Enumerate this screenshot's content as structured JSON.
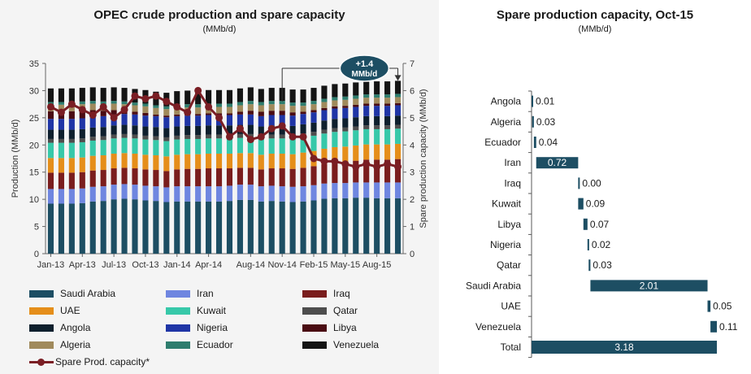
{
  "left": {
    "title": "OPEC crude production and spare capacity",
    "subtitle": "(MMb/d)"
  },
  "right": {
    "title": "Spare production capacity, Oct-15",
    "subtitle": "(MMb/d)"
  },
  "chart_data": [
    {
      "type": "bar",
      "stacked": true,
      "ylabel": "Production (MMb/d)",
      "y2label": "Spare production capacity (MMb/d)",
      "ylim": [
        0,
        35
      ],
      "yticks": [
        0,
        5,
        10,
        15,
        20,
        25,
        30,
        35
      ],
      "y2lim": [
        0,
        7
      ],
      "y2ticks": [
        0,
        1,
        2,
        3,
        4,
        5,
        6,
        7
      ],
      "grid": false,
      "legend_position": "bottom",
      "categories": [
        "Jan-13",
        "Feb-13",
        "Mar-13",
        "Apr-13",
        "May-13",
        "Jun-13",
        "Jul-13",
        "Aug-13",
        "Sep-13",
        "Oct-13",
        "Nov-13",
        "Dec-13",
        "Jan-14",
        "Feb-14",
        "Mar-14",
        "Apr-14",
        "May-14",
        "Jun-14",
        "Jul-14",
        "Aug-14",
        "Sep-14",
        "Oct-14",
        "Nov-14",
        "Dec-14",
        "Jan-15",
        "Feb-15",
        "Mar-15",
        "Apr-15",
        "May-15",
        "Jun-15",
        "Jul-15",
        "Aug-15",
        "Sep-15",
        "Oct-15"
      ],
      "xtick_labels": [
        "Jan-13",
        "Apr-13",
        "Jul-13",
        "Oct-13",
        "Jan-14",
        "Apr-14",
        "Aug-14",
        "Nov-14",
        "Feb-15",
        "May-15",
        "Aug-15"
      ],
      "xtick_indices": [
        0,
        3,
        6,
        9,
        12,
        15,
        19,
        22,
        25,
        28,
        31
      ],
      "series": [
        {
          "name": "Saudi Arabia",
          "color": "#1d4e63",
          "values": [
            9.2,
            9.2,
            9.2,
            9.3,
            9.6,
            9.7,
            10.0,
            10.1,
            10.0,
            9.8,
            9.7,
            9.5,
            9.6,
            9.6,
            9.6,
            9.6,
            9.6,
            9.7,
            9.9,
            9.9,
            9.6,
            9.7,
            9.6,
            9.5,
            9.6,
            9.8,
            10.1,
            10.2,
            10.2,
            10.3,
            10.3,
            10.2,
            10.2,
            10.2
          ]
        },
        {
          "name": "Iran",
          "color": "#6f86e0",
          "values": [
            2.7,
            2.7,
            2.7,
            2.7,
            2.7,
            2.7,
            2.7,
            2.7,
            2.7,
            2.7,
            2.7,
            2.7,
            2.8,
            2.8,
            2.8,
            2.8,
            2.8,
            2.8,
            2.8,
            2.8,
            2.8,
            2.8,
            2.8,
            2.8,
            2.8,
            2.8,
            2.8,
            2.8,
            2.8,
            2.8,
            2.8,
            2.9,
            2.9,
            2.9
          ]
        },
        {
          "name": "Iraq",
          "color": "#7a1d1d",
          "values": [
            3.0,
            3.0,
            3.0,
            3.0,
            3.0,
            3.0,
            3.0,
            3.0,
            3.0,
            3.0,
            3.0,
            3.0,
            3.1,
            3.2,
            3.2,
            3.3,
            3.3,
            3.2,
            3.1,
            3.1,
            3.1,
            3.2,
            3.3,
            3.3,
            3.4,
            3.5,
            3.6,
            3.8,
            3.9,
            4.0,
            4.2,
            4.2,
            4.2,
            4.3
          ]
        },
        {
          "name": "UAE",
          "color": "#e58e1a",
          "values": [
            2.7,
            2.7,
            2.7,
            2.7,
            2.7,
            2.7,
            2.7,
            2.7,
            2.7,
            2.7,
            2.7,
            2.7,
            2.7,
            2.7,
            2.7,
            2.7,
            2.7,
            2.7,
            2.7,
            2.7,
            2.7,
            2.7,
            2.7,
            2.7,
            2.8,
            2.8,
            2.8,
            2.8,
            2.8,
            2.8,
            2.8,
            2.8,
            2.8,
            2.8
          ]
        },
        {
          "name": "Kuwait",
          "color": "#37c8a9",
          "values": [
            2.8,
            2.8,
            2.8,
            2.8,
            2.8,
            2.8,
            2.8,
            2.8,
            2.8,
            2.8,
            2.8,
            2.8,
            2.8,
            2.8,
            2.8,
            2.8,
            2.8,
            2.8,
            2.8,
            2.8,
            2.8,
            2.8,
            2.8,
            2.8,
            2.8,
            2.8,
            2.8,
            2.8,
            2.8,
            2.8,
            2.8,
            2.8,
            2.8,
            2.8
          ]
        },
        {
          "name": "Qatar",
          "color": "#4d4d4d",
          "values": [
            0.7,
            0.7,
            0.7,
            0.7,
            0.7,
            0.7,
            0.7,
            0.7,
            0.7,
            0.7,
            0.7,
            0.7,
            0.7,
            0.7,
            0.7,
            0.7,
            0.7,
            0.7,
            0.7,
            0.7,
            0.7,
            0.7,
            0.7,
            0.7,
            0.7,
            0.7,
            0.7,
            0.7,
            0.7,
            0.7,
            0.7,
            0.7,
            0.7,
            0.7
          ]
        },
        {
          "name": "Angola",
          "color": "#0e1f2d",
          "values": [
            1.7,
            1.7,
            1.7,
            1.7,
            1.7,
            1.7,
            1.7,
            1.7,
            1.7,
            1.7,
            1.7,
            1.7,
            1.7,
            1.7,
            1.7,
            1.7,
            1.7,
            1.7,
            1.7,
            1.7,
            1.7,
            1.7,
            1.7,
            1.7,
            1.7,
            1.7,
            1.7,
            1.7,
            1.7,
            1.7,
            1.7,
            1.7,
            1.7,
            1.7
          ]
        },
        {
          "name": "Nigeria",
          "color": "#1f35a6",
          "values": [
            2.0,
            2.0,
            2.0,
            2.0,
            2.0,
            2.0,
            2.0,
            2.0,
            2.0,
            2.0,
            2.0,
            2.0,
            1.9,
            1.9,
            1.9,
            1.9,
            1.9,
            1.9,
            1.9,
            1.9,
            1.9,
            1.9,
            1.9,
            1.9,
            1.9,
            1.9,
            1.9,
            1.9,
            1.9,
            1.9,
            1.9,
            1.9,
            1.9,
            1.9
          ]
        },
        {
          "name": "Libya",
          "color": "#4a0b12",
          "values": [
            1.4,
            1.4,
            1.4,
            1.4,
            1.2,
            1.0,
            0.8,
            0.6,
            0.5,
            0.5,
            0.3,
            0.3,
            0.3,
            0.3,
            0.3,
            0.3,
            0.3,
            0.3,
            0.5,
            0.7,
            0.8,
            0.8,
            0.8,
            0.6,
            0.4,
            0.4,
            0.4,
            0.4,
            0.4,
            0.4,
            0.4,
            0.4,
            0.4,
            0.4
          ]
        },
        {
          "name": "Algeria",
          "color": "#a08a5c",
          "values": [
            1.2,
            1.2,
            1.2,
            1.2,
            1.2,
            1.2,
            1.2,
            1.2,
            1.2,
            1.2,
            1.2,
            1.2,
            1.2,
            1.2,
            1.2,
            1.2,
            1.2,
            1.2,
            1.2,
            1.2,
            1.2,
            1.2,
            1.2,
            1.2,
            1.1,
            1.1,
            1.1,
            1.1,
            1.1,
            1.1,
            1.1,
            1.1,
            1.1,
            1.1
          ]
        },
        {
          "name": "Ecuador",
          "color": "#2e7d6e",
          "values": [
            0.5,
            0.5,
            0.5,
            0.5,
            0.5,
            0.5,
            0.5,
            0.5,
            0.5,
            0.5,
            0.5,
            0.5,
            0.6,
            0.6,
            0.6,
            0.6,
            0.6,
            0.6,
            0.6,
            0.6,
            0.6,
            0.6,
            0.6,
            0.6,
            0.6,
            0.6,
            0.6,
            0.6,
            0.6,
            0.6,
            0.6,
            0.6,
            0.6,
            0.6
          ]
        },
        {
          "name": "Venezuela",
          "color": "#141414",
          "values": [
            2.5,
            2.5,
            2.5,
            2.5,
            2.5,
            2.5,
            2.5,
            2.5,
            2.5,
            2.5,
            2.5,
            2.5,
            2.5,
            2.5,
            2.5,
            2.5,
            2.5,
            2.5,
            2.5,
            2.5,
            2.4,
            2.4,
            2.4,
            2.4,
            2.4,
            2.4,
            2.4,
            2.4,
            2.4,
            2.4,
            2.4,
            2.4,
            2.4,
            2.4
          ]
        }
      ],
      "line_series": {
        "name": "Spare Prod. capacity*",
        "color": "#7a1e24",
        "axis": "right",
        "values": [
          5.4,
          5.2,
          5.5,
          5.3,
          5.1,
          5.4,
          5.0,
          5.3,
          5.8,
          5.7,
          5.8,
          5.6,
          5.4,
          5.2,
          6.0,
          5.4,
          5.0,
          4.3,
          4.6,
          4.2,
          4.3,
          4.6,
          4.7,
          4.3,
          4.3,
          3.5,
          3.4,
          3.4,
          3.3,
          3.2,
          3.3,
          3.2,
          3.3,
          3.2
        ]
      },
      "annotation": {
        "text_line1": "+1.4",
        "text_line2": "MMb/d",
        "from_index": 22,
        "to_index": 33
      }
    },
    {
      "type": "bar",
      "variant": "waterfall",
      "categories": [
        "Angola",
        "Algeria",
        "Ecuador",
        "Iran",
        "Iraq",
        "Kuwait",
        "Libya",
        "Nigeria",
        "Qatar",
        "Saudi Arabia",
        "UAE",
        "Venezuela",
        "Total"
      ],
      "values": [
        0.01,
        0.03,
        0.04,
        0.72,
        0.0,
        0.09,
        0.07,
        0.02,
        0.03,
        2.01,
        0.05,
        0.11,
        3.18
      ],
      "value_labels": [
        "0.01",
        "0.03",
        "0.04",
        "0.72",
        "0.00",
        "0.09",
        "0.07",
        "0.02",
        "0.03",
        "2.01",
        "0.05",
        "0.11",
        "3.18"
      ],
      "total_category": "Total",
      "xlim": [
        0,
        3.18
      ],
      "bar_color": "#1d4e63",
      "axis_color": "#5a5a5a"
    }
  ]
}
